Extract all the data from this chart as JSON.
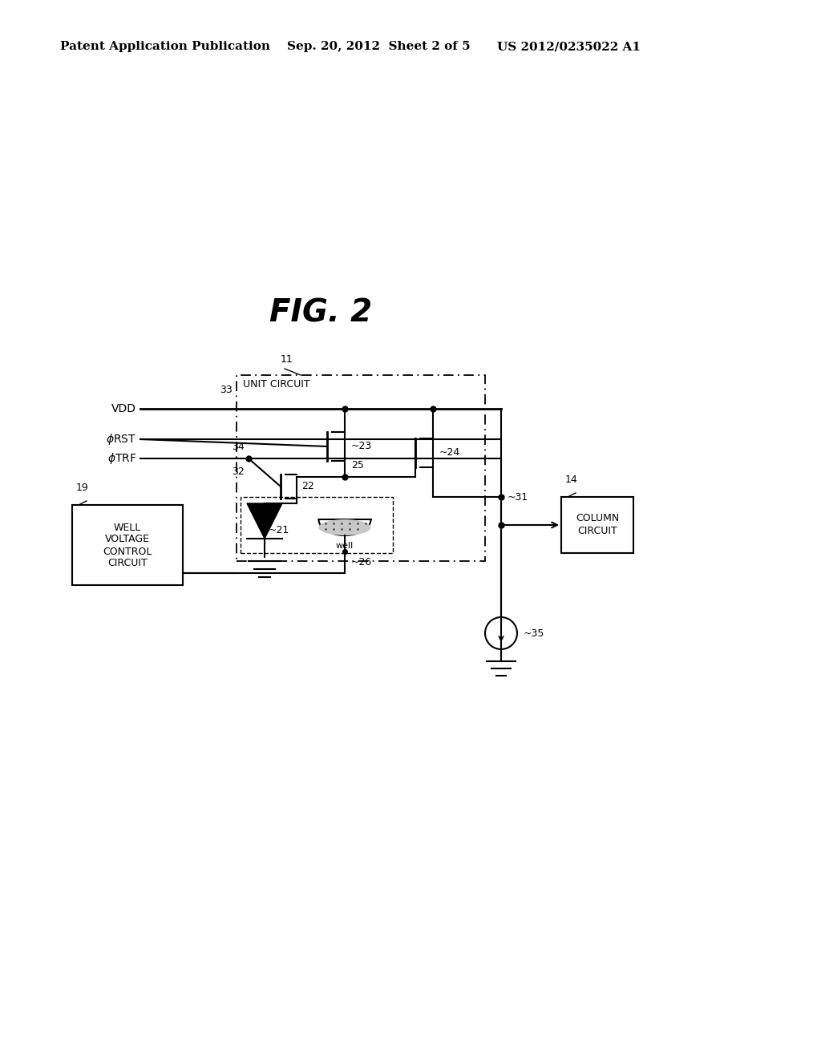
{
  "bg_color": "#ffffff",
  "header_left": "Patent Application Publication",
  "header_center": "Sep. 20, 2012  Sheet 2 of 5",
  "header_right": "US 2012/0235022 A1",
  "fig_title": "FIG. 2",
  "lw": 1.5,
  "lw_thick": 2.0,
  "color": "#000000",
  "fs_header": 11,
  "fs_label": 9,
  "fs_title": 28
}
